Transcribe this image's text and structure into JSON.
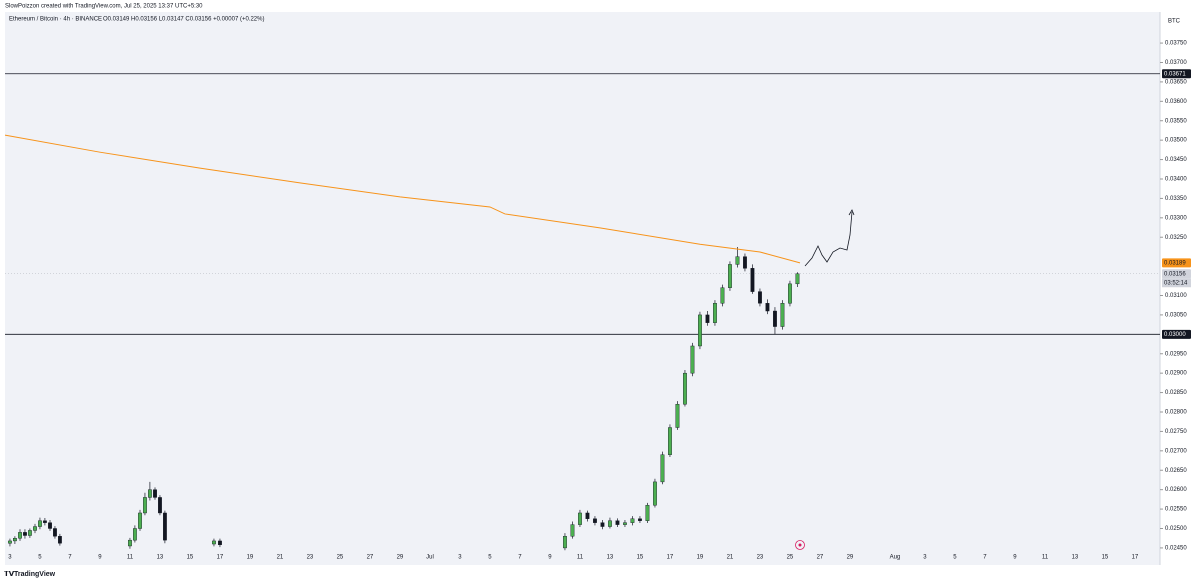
{
  "chart_data": {
    "type": "candlestick",
    "credit": "SlowPoizzon created with TradingView.com, Jul 25, 2025 13:37 UTC+5:30",
    "title": "Ethereum / Bitcoin · 4h · BINANCE",
    "ohlc_text": "O0.03149 H0.03156 L0.03147 C0.03156 +0.00007 (+0.22%)",
    "currency": "BTC",
    "brand": "TradingView",
    "xlim": [
      -0.33,
      76.67
    ],
    "ylim": [
      0.02406,
      0.0383
    ],
    "xticks": [
      {
        "value": 0,
        "label": "3"
      },
      {
        "value": 2,
        "label": "5"
      },
      {
        "value": 4,
        "label": "7"
      },
      {
        "value": 6,
        "label": "9"
      },
      {
        "value": 8,
        "label": "11"
      },
      {
        "value": 10,
        "label": "13"
      },
      {
        "value": 12,
        "label": "15"
      },
      {
        "value": 14,
        "label": "17"
      },
      {
        "value": 16,
        "label": "19"
      },
      {
        "value": 18,
        "label": "21"
      },
      {
        "value": 20,
        "label": "23"
      },
      {
        "value": 22,
        "label": "25"
      },
      {
        "value": 24,
        "label": "27"
      },
      {
        "value": 26,
        "label": "29"
      },
      {
        "value": 28,
        "label": "Jul"
      },
      {
        "value": 30,
        "label": "3"
      },
      {
        "value": 32,
        "label": "5"
      },
      {
        "value": 34,
        "label": "7"
      },
      {
        "value": 36,
        "label": "9"
      },
      {
        "value": 38,
        "label": "11"
      },
      {
        "value": 40,
        "label": "13"
      },
      {
        "value": 42,
        "label": "15"
      },
      {
        "value": 44,
        "label": "17"
      },
      {
        "value": 46,
        "label": "19"
      },
      {
        "value": 48,
        "label": "21"
      },
      {
        "value": 50,
        "label": "23"
      },
      {
        "value": 52,
        "label": "25"
      },
      {
        "value": 54,
        "label": "27"
      },
      {
        "value": 56,
        "label": "29"
      },
      {
        "value": 59,
        "label": "Aug"
      },
      {
        "value": 61,
        "label": "3"
      },
      {
        "value": 63,
        "label": "5"
      },
      {
        "value": 65,
        "label": "7"
      },
      {
        "value": 67,
        "label": "9"
      },
      {
        "value": 69,
        "label": "11"
      },
      {
        "value": 71,
        "label": "13"
      },
      {
        "value": 73,
        "label": "15"
      },
      {
        "value": 75,
        "label": "17"
      }
    ],
    "yticks": [
      {
        "value": 0.0375,
        "label": "0.03750"
      },
      {
        "value": 0.037,
        "label": "0.03700"
      },
      {
        "value": 0.0365,
        "label": "0.03650"
      },
      {
        "value": 0.036,
        "label": "0.03600"
      },
      {
        "value": 0.0355,
        "label": "0.03550"
      },
      {
        "value": 0.035,
        "label": "0.03500"
      },
      {
        "value": 0.0345,
        "label": "0.03450"
      },
      {
        "value": 0.034,
        "label": "0.03400"
      },
      {
        "value": 0.0335,
        "label": "0.03350"
      },
      {
        "value": 0.033,
        "label": "0.03300"
      },
      {
        "value": 0.0325,
        "label": "0.03250"
      },
      {
        "value": 0.031,
        "label": "0.03100"
      },
      {
        "value": 0.0305,
        "label": "0.03050"
      },
      {
        "value": 0.0295,
        "label": "0.02950"
      },
      {
        "value": 0.029,
        "label": "0.02900"
      },
      {
        "value": 0.0285,
        "label": "0.02850"
      },
      {
        "value": 0.028,
        "label": "0.02800"
      },
      {
        "value": 0.0275,
        "label": "0.02750"
      },
      {
        "value": 0.027,
        "label": "0.02700"
      },
      {
        "value": 0.0265,
        "label": "0.02650"
      },
      {
        "value": 0.026,
        "label": "0.02600"
      },
      {
        "value": 0.0255,
        "label": "0.02550"
      },
      {
        "value": 0.025,
        "label": "0.02500"
      },
      {
        "value": 0.0245,
        "label": "0.02450"
      }
    ],
    "levels": [
      {
        "value": 0.03671,
        "label": "0.03671"
      },
      {
        "value": 0.03,
        "label": "0.03000"
      }
    ],
    "last_price": {
      "value": 0.03156,
      "label": "0.03156",
      "countdown": "03:52:14"
    },
    "ma": {
      "color": "#f7931a",
      "label": "0.03189",
      "x": [
        -0.33,
        6,
        12.67,
        19.33,
        26,
        32,
        33,
        39.33,
        46,
        50,
        52.67
      ],
      "values": [
        0.03513,
        0.03469,
        0.03428,
        0.0339,
        0.03354,
        0.03328,
        0.0331,
        0.03274,
        0.03232,
        0.03212,
        0.03184
      ]
    },
    "up_color": "#4caf50",
    "down_color": "#131722",
    "candles": {
      "x": [
        0,
        0.33,
        0.67,
        1,
        1.33,
        1.67,
        2,
        2.33,
        2.67,
        3,
        3.33,
        8,
        8.33,
        8.67,
        9,
        9.33,
        9.67,
        10,
        10.33,
        13.6,
        14,
        37,
        37.5,
        38,
        38.5,
        39,
        39.5,
        40,
        40.5,
        41,
        41.5,
        42,
        42.5,
        43,
        43.5,
        44,
        44.5,
        45,
        45.5,
        46,
        46.5,
        47,
        47.5,
        48,
        48.5,
        49,
        49.5,
        50,
        50.5,
        51,
        51.5,
        52,
        52.5
      ],
      "open": [
        0.02462,
        0.02468,
        0.02475,
        0.0249,
        0.02482,
        0.02495,
        0.02505,
        0.0252,
        0.02515,
        0.025,
        0.0248,
        0.02455,
        0.0247,
        0.025,
        0.0254,
        0.0258,
        0.026,
        0.0258,
        0.0254,
        0.0246,
        0.02468,
        0.0245,
        0.0248,
        0.0251,
        0.0254,
        0.02525,
        0.02515,
        0.02505,
        0.0252,
        0.0251,
        0.02515,
        0.02525,
        0.0252,
        0.0256,
        0.0262,
        0.0269,
        0.0276,
        0.0282,
        0.029,
        0.0297,
        0.0305,
        0.0303,
        0.0308,
        0.0312,
        0.0318,
        0.032,
        0.0317,
        0.0311,
        0.0308,
        0.0306,
        0.0302,
        0.0308,
        0.0313
      ],
      "close": [
        0.02468,
        0.02475,
        0.0249,
        0.02482,
        0.02495,
        0.02505,
        0.0252,
        0.02515,
        0.025,
        0.0248,
        0.02462,
        0.0247,
        0.025,
        0.0254,
        0.0258,
        0.026,
        0.0258,
        0.0254,
        0.0247,
        0.02468,
        0.02458,
        0.0248,
        0.0251,
        0.0254,
        0.02525,
        0.02515,
        0.02505,
        0.0252,
        0.0251,
        0.02515,
        0.02525,
        0.0252,
        0.0256,
        0.0262,
        0.0269,
        0.0276,
        0.0282,
        0.029,
        0.0297,
        0.0305,
        0.0303,
        0.0308,
        0.0312,
        0.0318,
        0.032,
        0.0317,
        0.0311,
        0.0308,
        0.0306,
        0.0302,
        0.0308,
        0.0313,
        0.03156
      ],
      "high": [
        0.02474,
        0.0248,
        0.02498,
        0.02498,
        0.025,
        0.02512,
        0.02528,
        0.02527,
        0.02522,
        0.02506,
        0.02486,
        0.02476,
        0.02508,
        0.02548,
        0.02592,
        0.0262,
        0.02606,
        0.02586,
        0.02546,
        0.02474,
        0.02474,
        0.02488,
        0.02518,
        0.02548,
        0.02546,
        0.02532,
        0.02522,
        0.02528,
        0.02526,
        0.02522,
        0.02532,
        0.02532,
        0.02566,
        0.02628,
        0.02698,
        0.02768,
        0.02828,
        0.02908,
        0.02978,
        0.03058,
        0.0306,
        0.03088,
        0.03128,
        0.03188,
        0.03225,
        0.03208,
        0.0318,
        0.03118,
        0.0309,
        0.0307,
        0.03088,
        0.03138,
        0.0316
      ],
      "low": [
        0.02454,
        0.0246,
        0.02468,
        0.02474,
        0.02476,
        0.02488,
        0.02498,
        0.02508,
        0.02494,
        0.02474,
        0.02456,
        0.02448,
        0.02464,
        0.02494,
        0.02534,
        0.02572,
        0.02574,
        0.02534,
        0.02462,
        0.02454,
        0.02452,
        0.02444,
        0.02474,
        0.02504,
        0.02518,
        0.02508,
        0.02498,
        0.025,
        0.02504,
        0.02504,
        0.02508,
        0.02514,
        0.02514,
        0.02554,
        0.02614,
        0.02684,
        0.02754,
        0.02814,
        0.02892,
        0.02962,
        0.03022,
        0.03022,
        0.03072,
        0.03112,
        0.03172,
        0.03162,
        0.03104,
        0.03072,
        0.03052,
        0.03,
        0.03012,
        0.03072,
        0.03122
      ]
    }
  }
}
